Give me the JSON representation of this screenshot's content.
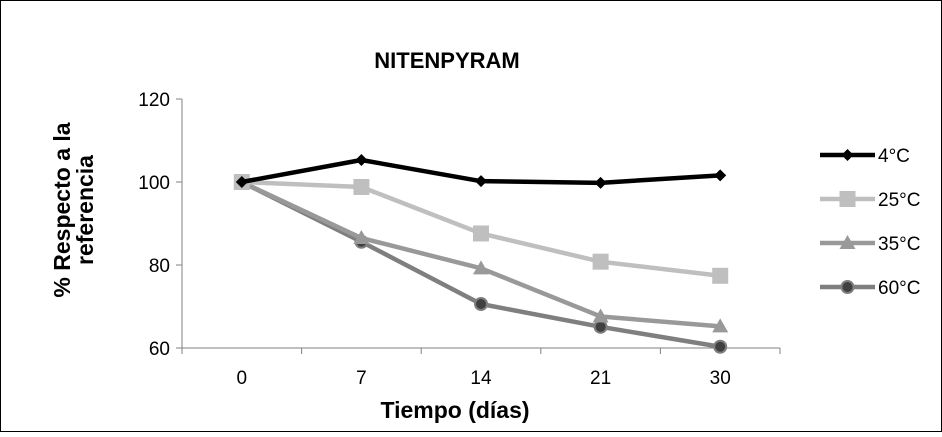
{
  "chart_data": {
    "type": "line",
    "title": "NITENPYRAM",
    "xlabel": "Tiempo (días)",
    "ylabel_lines": [
      "% Respecto a la",
      "referencia"
    ],
    "categories": [
      "0",
      "7",
      "14",
      "21",
      "30"
    ],
    "ylim": [
      60,
      120
    ],
    "yticks": [
      60,
      80,
      100,
      120
    ],
    "grid": false,
    "legend_position": "right",
    "series": [
      {
        "name": "4°C",
        "values": [
          100,
          105.3,
          100.2,
          99.8,
          101.6
        ],
        "color": "#000000",
        "marker": "diamond"
      },
      {
        "name": "25°C",
        "values": [
          100,
          98.8,
          87.6,
          80.8,
          77.4
        ],
        "color": "#bfbfbf",
        "marker": "square"
      },
      {
        "name": "35°C",
        "values": [
          100,
          86.5,
          79.2,
          67.6,
          65.2
        ],
        "color": "#999999",
        "marker": "triangle"
      },
      {
        "name": "60°C",
        "values": [
          100,
          85.6,
          70.6,
          65.1,
          60.3
        ],
        "color": "#7f7f7f",
        "marker": "circle"
      }
    ]
  }
}
